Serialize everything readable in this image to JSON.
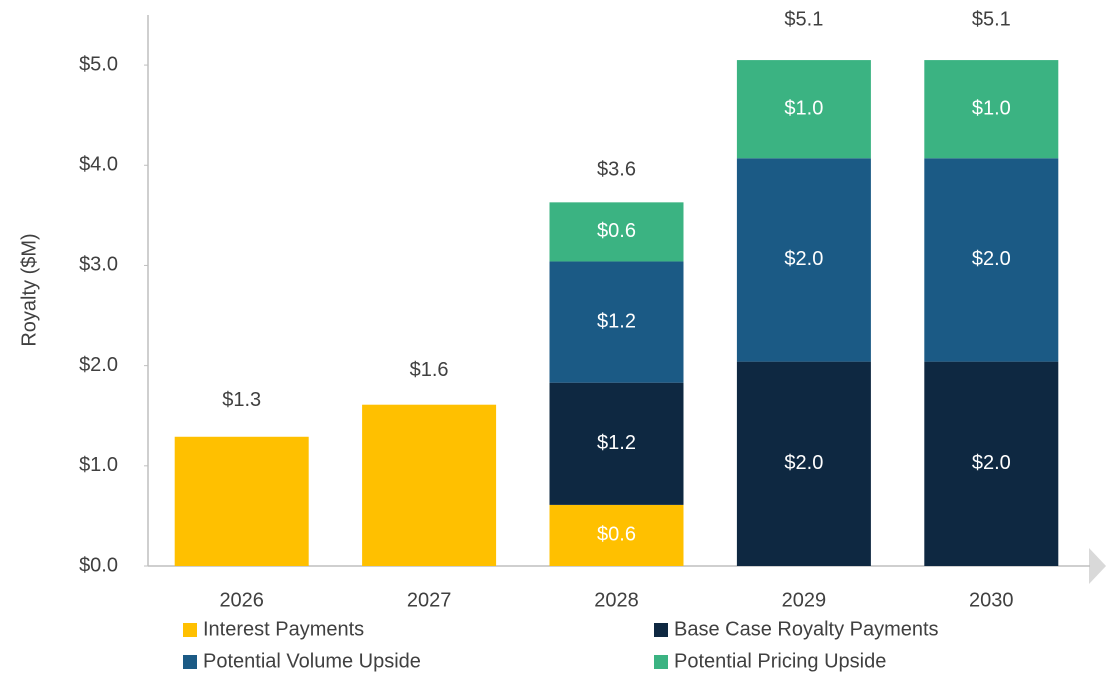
{
  "chart_data": {
    "type": "stacked_bar",
    "y_label": "Royalty ($M)",
    "categories": [
      "2026",
      "2027",
      "2028",
      "2029",
      "2030"
    ],
    "series": [
      {
        "name": "Interest Payments",
        "color": "#FFC000",
        "values": [
          1.29,
          1.61,
          0.61,
          null,
          null
        ],
        "value_labels": [
          null,
          null,
          "$0.6",
          null,
          null
        ]
      },
      {
        "name": "Base Case Royalty Payments",
        "color": "#0E2841",
        "values": [
          null,
          null,
          1.22,
          2.04,
          2.04
        ],
        "value_labels": [
          null,
          null,
          "$1.2",
          "$2.0",
          "$2.0"
        ]
      },
      {
        "name": "Potential Volume Upside",
        "color": "#1B5A85",
        "values": [
          null,
          null,
          1.21,
          2.03,
          2.03
        ],
        "value_labels": [
          null,
          null,
          "$1.2",
          "$2.0",
          "$2.0"
        ]
      },
      {
        "name": "Potential Pricing Upside",
        "color": "#3BB382",
        "values": [
          null,
          null,
          0.59,
          0.98,
          0.98
        ],
        "value_labels": [
          null,
          null,
          "$0.6",
          "$1.0",
          "$1.0"
        ]
      }
    ],
    "totals": {
      "values": [
        1.3,
        1.6,
        3.6,
        5.1,
        5.1
      ],
      "value_labels": [
        "$1.3",
        "$1.6",
        "$3.6",
        "$5.1",
        "$5.1"
      ]
    },
    "ylim": [
      0,
      5.5
    ],
    "yticks": [
      {
        "value": 0,
        "label": "$0.0"
      },
      {
        "value": 1,
        "label": "$1.0"
      },
      {
        "value": 2,
        "label": "$2.0"
      },
      {
        "value": 3,
        "label": "$3.0"
      },
      {
        "value": 4,
        "label": "$4.0"
      },
      {
        "value": 5,
        "label": "$5.0"
      }
    ],
    "grid": false
  }
}
